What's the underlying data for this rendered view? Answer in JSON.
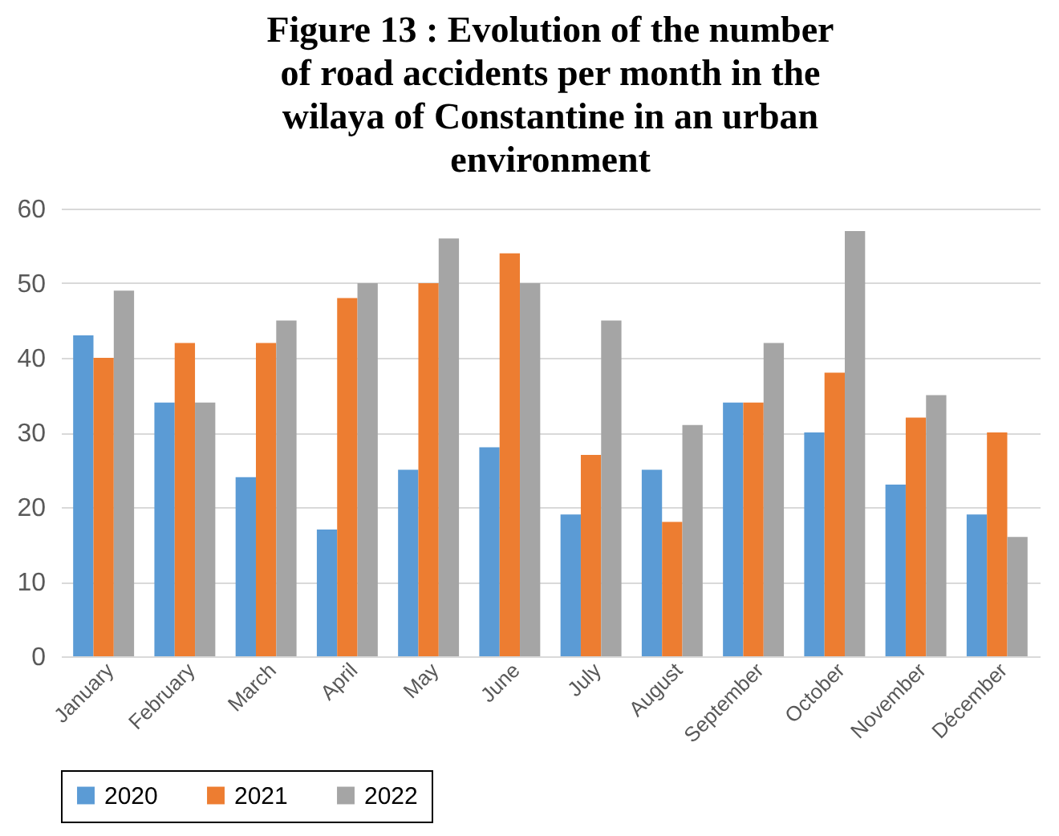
{
  "chart_data": {
    "type": "bar",
    "title": "Figure 13 : Evolution of the number of road accidents per month in the wilaya of Constantine in an urban environment",
    "categories": [
      "January",
      "February",
      "March",
      "April",
      "May",
      "June",
      "July",
      "August",
      "September",
      "October",
      "November",
      "Décember"
    ],
    "series": [
      {
        "name": "2020",
        "color": "#5b9bd5",
        "values": [
          43,
          34,
          24,
          17,
          25,
          28,
          19,
          25,
          34,
          30,
          23,
          19
        ]
      },
      {
        "name": "2021",
        "color": "#ed7d31",
        "values": [
          40,
          42,
          42,
          48,
          50,
          54,
          27,
          18,
          34,
          38,
          32,
          30
        ]
      },
      {
        "name": "2022",
        "color": "#a5a5a5",
        "values": [
          49,
          34,
          45,
          50,
          56,
          50,
          45,
          31,
          42,
          57,
          35,
          16
        ]
      }
    ],
    "ylim": [
      0,
      60
    ],
    "yticks": [
      0,
      10,
      20,
      30,
      40,
      50,
      60
    ],
    "grid": "y",
    "legend": "bottom"
  }
}
